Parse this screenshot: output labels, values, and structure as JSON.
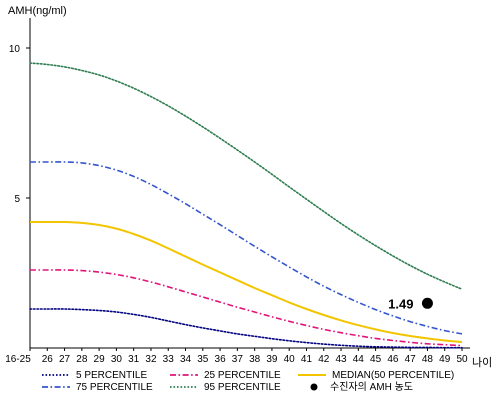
{
  "chart_data": {
    "type": "line",
    "ylabel": "AMH(ng/ml)",
    "xlabel": "나이",
    "x_categories": [
      "16-25",
      "26",
      "27",
      "28",
      "29",
      "30",
      "31",
      "32",
      "33",
      "34",
      "35",
      "36",
      "37",
      "38",
      "39",
      "40",
      "41",
      "42",
      "43",
      "44",
      "45",
      "46",
      "47",
      "48",
      "49",
      "50"
    ],
    "y_ticks": [
      5,
      10
    ],
    "ylim": [
      0,
      11
    ],
    "grid": false,
    "series": [
      {
        "name": "5 PERCENTILE",
        "color": "#000080",
        "style": "dotted",
        "values": [
          1.3,
          1.3,
          1.3,
          1.28,
          1.25,
          1.2,
          1.12,
          1.02,
          0.9,
          0.78,
          0.67,
          0.57,
          0.47,
          0.39,
          0.31,
          0.24,
          0.18,
          0.13,
          0.09,
          0.06,
          0.04,
          0.03,
          0.02,
          0.02,
          0.01,
          0.01
        ]
      },
      {
        "name": "25 PERCENTILE",
        "color": "#e0147a",
        "style": "dashdot",
        "values": [
          2.6,
          2.6,
          2.6,
          2.58,
          2.53,
          2.45,
          2.34,
          2.2,
          2.04,
          1.87,
          1.7,
          1.53,
          1.36,
          1.2,
          1.04,
          0.89,
          0.75,
          0.62,
          0.51,
          0.41,
          0.32,
          0.25,
          0.19,
          0.14,
          0.11,
          0.08
        ]
      },
      {
        "name": "MEDIAN(50 PERCENTILE)",
        "color": "#f2c500",
        "style": "solid",
        "values": [
          4.2,
          4.2,
          4.2,
          4.17,
          4.1,
          3.98,
          3.8,
          3.58,
          3.32,
          3.05,
          2.78,
          2.52,
          2.26,
          2.0,
          1.76,
          1.52,
          1.3,
          1.1,
          0.92,
          0.76,
          0.62,
          0.5,
          0.4,
          0.32,
          0.25,
          0.2
        ]
      },
      {
        "name": "75 PERCENTILE",
        "color": "#3355cc",
        "style": "dashdot",
        "values": [
          6.2,
          6.2,
          6.2,
          6.17,
          6.08,
          5.93,
          5.72,
          5.45,
          5.14,
          4.81,
          4.46,
          4.11,
          3.75,
          3.39,
          3.04,
          2.7,
          2.37,
          2.06,
          1.78,
          1.52,
          1.28,
          1.07,
          0.88,
          0.72,
          0.58,
          0.47
        ]
      },
      {
        "name": "95 PERCENTILE",
        "color": "#2e7d4f",
        "style": "dotted",
        "values": [
          9.5,
          9.45,
          9.37,
          9.25,
          9.1,
          8.9,
          8.66,
          8.38,
          8.07,
          7.73,
          7.37,
          6.99,
          6.6,
          6.2,
          5.79,
          5.37,
          4.96,
          4.55,
          4.15,
          3.77,
          3.41,
          3.07,
          2.75,
          2.46,
          2.2,
          1.96
        ]
      }
    ],
    "point": {
      "x": "48",
      "y": 1.49,
      "label": "1.49",
      "legend": "수진자의 AMH 농도"
    }
  }
}
